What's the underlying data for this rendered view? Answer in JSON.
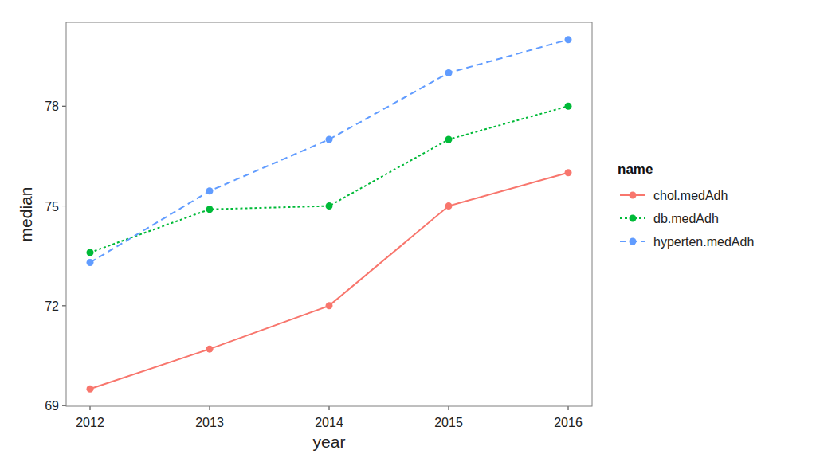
{
  "chart_data": {
    "type": "line",
    "x_label": "year",
    "y_label": "median",
    "legend_title": "name",
    "x": [
      2012,
      2013,
      2014,
      2015,
      2016
    ],
    "xlim": [
      2011.8,
      2016.2
    ],
    "xticks": [
      2012,
      2013,
      2014,
      2015,
      2016
    ],
    "ylim": [
      68.98,
      80.52
    ],
    "yticks": [
      69,
      72,
      75,
      78
    ],
    "grid": false,
    "legend": "right",
    "series": [
      {
        "name": "chol.medAdh",
        "color": "#F8766D",
        "line_style": "solid",
        "marker": "circle",
        "values": [
          69.5,
          70.7,
          72,
          75,
          76
        ]
      },
      {
        "name": "db.medAdh",
        "color": "#00BA38",
        "line_style": "dotted",
        "marker": "circle",
        "values": [
          73.6,
          74.9,
          75,
          77,
          78
        ]
      },
      {
        "name": "hyperten.medAdh",
        "color": "#619CFF",
        "line_style": "dashed",
        "marker": "circle",
        "values": [
          73.3,
          75.45,
          77,
          79,
          80
        ]
      }
    ]
  }
}
